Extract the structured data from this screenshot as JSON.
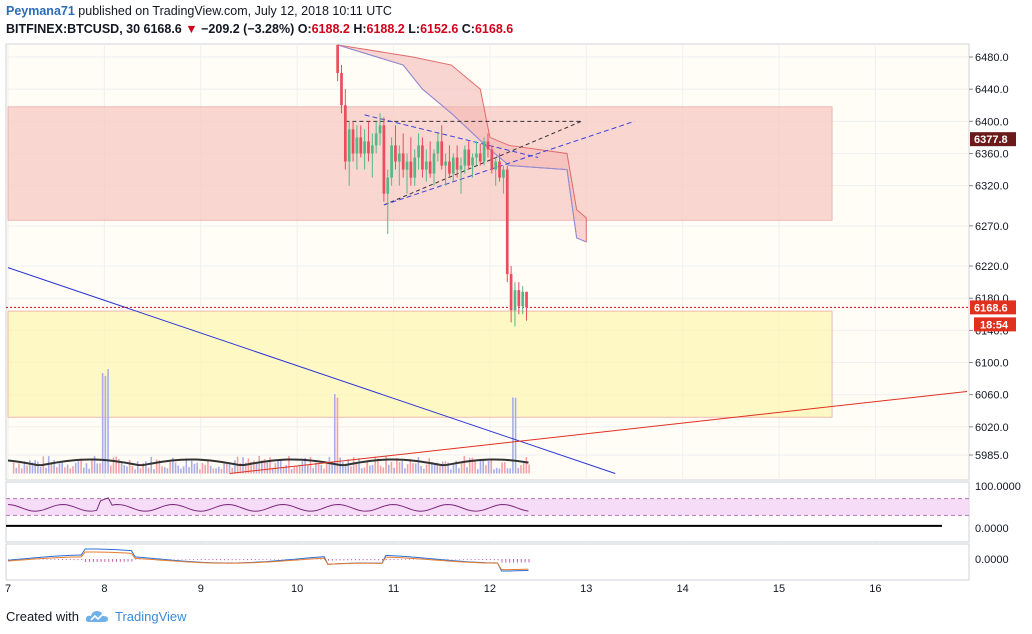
{
  "header": {
    "author": "Peymana71",
    "published": "published on TradingView.com, July 12, 2018 10:11 UTC",
    "symbol": "BITFINEX:BTCUSD, 30",
    "last": "6168.6",
    "change_arrow": "▼",
    "change": "−209.2 (−3.28%)",
    "o_label": "O:",
    "o": "6188.2",
    "h_label": "H:",
    "h": "6188.2",
    "l_label": "L:",
    "l": "6152.6",
    "c_label": "C:",
    "c": "6168.6"
  },
  "footer": {
    "created_with": "Created with",
    "brand": "TradingView",
    "logo_icon": "tradingview-cloud-icon"
  },
  "chart_data": {
    "type": "candlestick",
    "symbol": "BITFINEX:BTCUSD",
    "interval": "30",
    "ylim": [
      5962,
      6500
    ],
    "price_ticks": [
      "6480.0",
      "6440.0",
      "6400.0",
      "6360.0",
      "6320.0",
      "6270.0",
      "6220.0",
      "6180.0",
      "6140.0",
      "6100.0",
      "6060.0",
      "6020.0",
      "5985.0"
    ],
    "price_labels": {
      "current": "6168.6",
      "countdown": "18:54",
      "level": "6377.8"
    },
    "x_ticks": [
      "7",
      "8",
      "9",
      "10",
      "11",
      "12",
      "13",
      "14",
      "15",
      "16"
    ],
    "x_range": [
      7,
      16.95
    ],
    "zones": [
      {
        "name": "resistance-zone",
        "from": 6277,
        "to": 6418,
        "x": [
          7,
          15.55
        ],
        "color": "#f8c8c4"
      },
      {
        "name": "support-zone",
        "from": 6032,
        "to": 6164,
        "x": [
          7,
          15.55
        ],
        "color": "#fdf5b4"
      }
    ],
    "current_price": 6168.6,
    "candles": [
      [
        10.42,
        6495,
        6495,
        6450,
        6460
      ],
      [
        10.46,
        6460,
        6470,
        6410,
        6420
      ],
      [
        10.5,
        6420,
        6440,
        6340,
        6350
      ],
      [
        10.54,
        6350,
        6400,
        6320,
        6390
      ],
      [
        10.58,
        6390,
        6400,
        6350,
        6360
      ],
      [
        10.62,
        6360,
        6395,
        6340,
        6380
      ],
      [
        10.66,
        6380,
        6395,
        6355,
        6360
      ],
      [
        10.7,
        6360,
        6390,
        6340,
        6375
      ],
      [
        10.74,
        6375,
        6400,
        6350,
        6360
      ],
      [
        10.78,
        6360,
        6385,
        6330,
        6370
      ],
      [
        10.82,
        6370,
        6400,
        6360,
        6385
      ],
      [
        10.86,
        6385,
        6410,
        6370,
        6395
      ],
      [
        10.9,
        6395,
        6405,
        6300,
        6310
      ],
      [
        10.94,
        6310,
        6340,
        6260,
        6330
      ],
      [
        10.98,
        6330,
        6380,
        6320,
        6370
      ],
      [
        11.02,
        6370,
        6395,
        6340,
        6350
      ],
      [
        11.06,
        6350,
        6370,
        6320,
        6360
      ],
      [
        11.1,
        6360,
        6385,
        6330,
        6340
      ],
      [
        11.14,
        6340,
        6360,
        6310,
        6350
      ],
      [
        11.18,
        6350,
        6380,
        6320,
        6330
      ],
      [
        11.22,
        6330,
        6365,
        6320,
        6355
      ],
      [
        11.26,
        6355,
        6385,
        6340,
        6370
      ],
      [
        11.3,
        6370,
        6380,
        6330,
        6340
      ],
      [
        11.34,
        6340,
        6365,
        6325,
        6350
      ],
      [
        11.38,
        6350,
        6375,
        6330,
        6335
      ],
      [
        11.42,
        6335,
        6365,
        6320,
        6360
      ],
      [
        11.46,
        6360,
        6385,
        6350,
        6375
      ],
      [
        11.5,
        6375,
        6395,
        6340,
        6345
      ],
      [
        11.54,
        6345,
        6360,
        6320,
        6350
      ],
      [
        11.58,
        6350,
        6370,
        6330,
        6335
      ],
      [
        11.62,
        6335,
        6360,
        6325,
        6355
      ],
      [
        11.66,
        6355,
        6370,
        6330,
        6340
      ],
      [
        11.7,
        6340,
        6355,
        6310,
        6345
      ],
      [
        11.74,
        6345,
        6370,
        6335,
        6365
      ],
      [
        11.78,
        6365,
        6375,
        6340,
        6345
      ],
      [
        11.82,
        6345,
        6360,
        6330,
        6355
      ],
      [
        11.86,
        6355,
        6375,
        6345,
        6360
      ],
      [
        11.9,
        6360,
        6372,
        6345,
        6350
      ],
      [
        11.94,
        6350,
        6380,
        6345,
        6375
      ],
      [
        11.98,
        6375,
        6385,
        6355,
        6365
      ],
      [
        12.02,
        6365,
        6370,
        6335,
        6340
      ],
      [
        12.06,
        6340,
        6355,
        6320,
        6350
      ],
      [
        12.1,
        6350,
        6360,
        6325,
        6330
      ],
      [
        12.14,
        6330,
        6345,
        6310,
        6340
      ],
      [
        12.18,
        6340,
        6345,
        6200,
        6210
      ],
      [
        12.22,
        6210,
        6220,
        6150,
        6165
      ],
      [
        12.26,
        6165,
        6200,
        6145,
        6190
      ],
      [
        12.3,
        6190,
        6200,
        6160,
        6170
      ],
      [
        12.34,
        6170,
        6195,
        6160,
        6188
      ],
      [
        12.38,
        6188,
        6188,
        6152,
        6168.6
      ]
    ],
    "volume_baseline": 5962,
    "rsi": {
      "ylim": [
        0,
        100
      ],
      "ticks": [
        "100.0000",
        "0.0000"
      ],
      "band": [
        30,
        70
      ]
    },
    "macd": {
      "ticks": [
        "0.0000"
      ]
    }
  },
  "colors": {
    "up": "#53b987",
    "down": "#eb4d5c",
    "trend_blue": "#2b35d6",
    "trend_red": "#e0301e",
    "kumo": "#f3b5b0",
    "grid": "#eef0f2",
    "bg": "#fffdf5"
  }
}
